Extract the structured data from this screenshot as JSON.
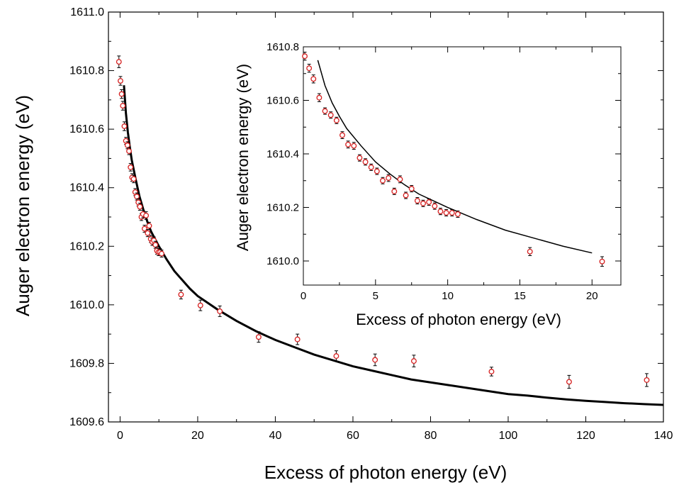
{
  "chart_data": [
    {
      "type": "scatter",
      "xlabel": "Excess of photon energy (eV)",
      "ylabel": "Auger electron energy (eV)",
      "xlim": [
        -3,
        140
      ],
      "ylim": [
        1609.6,
        1611.0
      ],
      "xticks": [
        "0",
        "20",
        "40",
        "60",
        "80",
        "100",
        "120",
        "140"
      ],
      "yticks": [
        "1609.6",
        "1609.8",
        "1610.0",
        "1610.2",
        "1610.4",
        "1610.6",
        "1610.8",
        "1611.0"
      ],
      "marker_color": "#d62020",
      "fit_color": "#000000",
      "series": [
        {
          "type": "scatter",
          "points": [
            {
              "x": -0.3,
              "y": 1610.83,
              "err": 0.02
            },
            {
              "x": 0.1,
              "y": 1610.765,
              "err": 0.015
            },
            {
              "x": 0.4,
              "y": 1610.72,
              "err": 0.015
            },
            {
              "x": 0.7,
              "y": 1610.68,
              "err": 0.015
            },
            {
              "x": 1.1,
              "y": 1610.61,
              "err": 0.015
            },
            {
              "x": 1.5,
              "y": 1610.56,
              "err": 0.012
            },
            {
              "x": 1.9,
              "y": 1610.545,
              "err": 0.012
            },
            {
              "x": 2.3,
              "y": 1610.525,
              "err": 0.012
            },
            {
              "x": 2.7,
              "y": 1610.47,
              "err": 0.013
            },
            {
              "x": 3.1,
              "y": 1610.435,
              "err": 0.013
            },
            {
              "x": 3.5,
              "y": 1610.43,
              "err": 0.013
            },
            {
              "x": 3.9,
              "y": 1610.385,
              "err": 0.012
            },
            {
              "x": 4.3,
              "y": 1610.37,
              "err": 0.012
            },
            {
              "x": 4.7,
              "y": 1610.35,
              "err": 0.012
            },
            {
              "x": 5.1,
              "y": 1610.335,
              "err": 0.012
            },
            {
              "x": 5.5,
              "y": 1610.3,
              "err": 0.012
            },
            {
              "x": 5.9,
              "y": 1610.31,
              "err": 0.013
            },
            {
              "x": 6.3,
              "y": 1610.26,
              "err": 0.012
            },
            {
              "x": 6.7,
              "y": 1610.305,
              "err": 0.013
            },
            {
              "x": 7.1,
              "y": 1610.245,
              "err": 0.012
            },
            {
              "x": 7.5,
              "y": 1610.27,
              "err": 0.012
            },
            {
              "x": 7.9,
              "y": 1610.225,
              "err": 0.012
            },
            {
              "x": 8.3,
              "y": 1610.215,
              "err": 0.012
            },
            {
              "x": 8.7,
              "y": 1610.22,
              "err": 0.012
            },
            {
              "x": 9.1,
              "y": 1610.205,
              "err": 0.012
            },
            {
              "x": 9.5,
              "y": 1610.185,
              "err": 0.012
            },
            {
              "x": 9.9,
              "y": 1610.18,
              "err": 0.012
            },
            {
              "x": 10.3,
              "y": 1610.18,
              "err": 0.012
            },
            {
              "x": 10.7,
              "y": 1610.175,
              "err": 0.012
            },
            {
              "x": 15.7,
              "y": 1610.035,
              "err": 0.015
            },
            {
              "x": 20.7,
              "y": 1609.998,
              "err": 0.018
            },
            {
              "x": 25.7,
              "y": 1609.978,
              "err": 0.018
            },
            {
              "x": 35.7,
              "y": 1609.89,
              "err": 0.018
            },
            {
              "x": 45.7,
              "y": 1609.882,
              "err": 0.018
            },
            {
              "x": 55.7,
              "y": 1609.825,
              "err": 0.018
            },
            {
              "x": 65.7,
              "y": 1609.812,
              "err": 0.02
            },
            {
              "x": 75.7,
              "y": 1609.808,
              "err": 0.02
            },
            {
              "x": 95.7,
              "y": 1609.772,
              "err": 0.015
            },
            {
              "x": 115.7,
              "y": 1609.737,
              "err": 0.022
            },
            {
              "x": 135.7,
              "y": 1609.743,
              "err": 0.022
            }
          ]
        },
        {
          "type": "line",
          "x": [
            1.0,
            1.5,
            2,
            2.5,
            3,
            4,
            5,
            6,
            7,
            8,
            9,
            10,
            12,
            14,
            16,
            18,
            20,
            25,
            30,
            35,
            40,
            45,
            50,
            55,
            60,
            65,
            70,
            75,
            80,
            85,
            90,
            95,
            100,
            105,
            110,
            115,
            120,
            125,
            130,
            135,
            140
          ],
          "y": [
            1610.75,
            1610.655,
            1610.59,
            1610.54,
            1610.495,
            1610.43,
            1610.37,
            1610.325,
            1610.285,
            1610.25,
            1610.225,
            1610.2,
            1610.155,
            1610.115,
            1610.085,
            1610.055,
            1610.03,
            1609.985,
            1609.945,
            1609.91,
            1609.88,
            1609.855,
            1609.83,
            1609.81,
            1609.79,
            1609.775,
            1609.76,
            1609.745,
            1609.735,
            1609.725,
            1609.715,
            1609.705,
            1609.695,
            1609.69,
            1609.683,
            1609.677,
            1609.672,
            1609.668,
            1609.664,
            1609.661,
            1609.658
          ]
        }
      ]
    },
    {
      "type": "scatter",
      "xlabel": "Excess of photon energy (eV)",
      "ylabel": "Auger electron energy (eV)",
      "xlim": [
        0,
        22
      ],
      "ylim": [
        1609.91,
        1610.8
      ],
      "xticks": [
        "0",
        "5",
        "10",
        "15",
        "20"
      ],
      "yticks": [
        "1610.0",
        "1610.2",
        "1610.4",
        "1610.6",
        "1610.8"
      ]
    }
  ]
}
